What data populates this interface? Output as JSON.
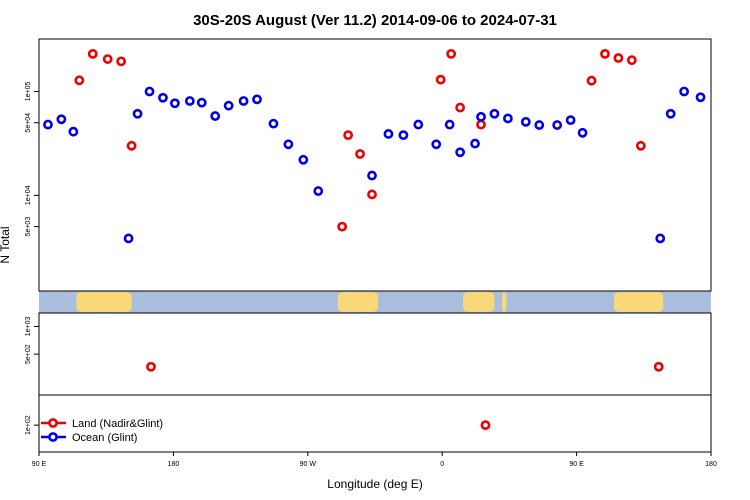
{
  "chart_data": {
    "type": "scatter",
    "title": "30S-20S August (Ver 11.2)   2014-09-06 to 2024-07-31",
    "xlabel": "Longitude (deg E)",
    "ylabel": "N Total",
    "y_scale": "log",
    "xlim": [
      90,
      540
    ],
    "x_ticks": [
      {
        "value": 90,
        "label": "90 E"
      },
      {
        "value": 180,
        "label": "180"
      },
      {
        "value": 270,
        "label": "90 W"
      },
      {
        "value": 360,
        "label": "0"
      },
      {
        "value": 450,
        "label": "90 E"
      },
      {
        "value": 540,
        "label": "180"
      }
    ],
    "panels": [
      {
        "name": "upper",
        "ylim": [
          1200,
          320000
        ],
        "y_ticks": [
          {
            "value": 5000,
            "label": "5e+03"
          },
          {
            "value": 10000,
            "label": "1e+04"
          },
          {
            "value": 50000,
            "label": "5e+04"
          },
          {
            "value": 100000,
            "label": "1e+05"
          }
        ]
      },
      {
        "name": "middle",
        "ylim": [
          180,
          1400
        ],
        "y_ticks": [
          {
            "value": 500,
            "label": "5e+02"
          },
          {
            "value": 1000,
            "label": "1e+03"
          }
        ]
      },
      {
        "name": "lower",
        "ylim": [
          85,
          120
        ],
        "y_ticks": [
          {
            "value": 100,
            "label": "1e+02"
          }
        ]
      }
    ],
    "series": [
      {
        "name": "Land (Nadir&Glint)",
        "color": "#ee0000",
        "points": [
          {
            "x": 117,
            "y": 128000,
            "panel": "upper"
          },
          {
            "x": 126,
            "y": 230000,
            "panel": "upper"
          },
          {
            "x": 136,
            "y": 205000,
            "panel": "upper"
          },
          {
            "x": 145,
            "y": 195000,
            "panel": "upper"
          },
          {
            "x": 152,
            "y": 30000,
            "panel": "upper"
          },
          {
            "x": 165,
            "y": 365,
            "panel": "middle"
          },
          {
            "x": 293,
            "y": 5000,
            "panel": "upper"
          },
          {
            "x": 297,
            "y": 38000,
            "panel": "upper"
          },
          {
            "x": 305,
            "y": 25000,
            "panel": "upper"
          },
          {
            "x": 313,
            "y": 10200,
            "panel": "upper"
          },
          {
            "x": 359,
            "y": 130000,
            "panel": "upper"
          },
          {
            "x": 366,
            "y": 230000,
            "panel": "upper"
          },
          {
            "x": 372,
            "y": 70000,
            "panel": "upper"
          },
          {
            "x": 386,
            "y": 48000,
            "panel": "upper"
          },
          {
            "x": 389,
            "y": 100,
            "panel": "lower"
          },
          {
            "x": 460,
            "y": 127000,
            "panel": "upper"
          },
          {
            "x": 469,
            "y": 230000,
            "panel": "upper"
          },
          {
            "x": 478,
            "y": 210000,
            "panel": "upper"
          },
          {
            "x": 487,
            "y": 200000,
            "panel": "upper"
          },
          {
            "x": 493,
            "y": 30000,
            "panel": "upper"
          },
          {
            "x": 505,
            "y": 365,
            "panel": "middle"
          }
        ]
      },
      {
        "name": "Ocean (Glint)",
        "color": "#0000ee",
        "points": [
          {
            "x": 96,
            "y": 48000,
            "panel": "upper"
          },
          {
            "x": 105,
            "y": 54000,
            "panel": "upper"
          },
          {
            "x": 113,
            "y": 41000,
            "panel": "upper"
          },
          {
            "x": 150,
            "y": 3850,
            "panel": "upper"
          },
          {
            "x": 156,
            "y": 61000,
            "panel": "upper"
          },
          {
            "x": 164,
            "y": 100000,
            "panel": "upper"
          },
          {
            "x": 173,
            "y": 87000,
            "panel": "upper"
          },
          {
            "x": 181,
            "y": 77000,
            "panel": "upper"
          },
          {
            "x": 191,
            "y": 81000,
            "panel": "upper"
          },
          {
            "x": 199,
            "y": 78000,
            "panel": "upper"
          },
          {
            "x": 208,
            "y": 58000,
            "panel": "upper"
          },
          {
            "x": 217,
            "y": 73000,
            "panel": "upper"
          },
          {
            "x": 227,
            "y": 81000,
            "panel": "upper"
          },
          {
            "x": 236,
            "y": 84000,
            "panel": "upper"
          },
          {
            "x": 247,
            "y": 49000,
            "panel": "upper"
          },
          {
            "x": 257,
            "y": 31000,
            "panel": "upper"
          },
          {
            "x": 267,
            "y": 22000,
            "panel": "upper"
          },
          {
            "x": 277,
            "y": 11000,
            "panel": "upper"
          },
          {
            "x": 313,
            "y": 15500,
            "panel": "upper"
          },
          {
            "x": 324,
            "y": 39000,
            "panel": "upper"
          },
          {
            "x": 334,
            "y": 38000,
            "panel": "upper"
          },
          {
            "x": 344,
            "y": 48000,
            "panel": "upper"
          },
          {
            "x": 356,
            "y": 31000,
            "panel": "upper"
          },
          {
            "x": 365,
            "y": 48000,
            "panel": "upper"
          },
          {
            "x": 372,
            "y": 26000,
            "panel": "upper"
          },
          {
            "x": 382,
            "y": 31500,
            "panel": "upper"
          },
          {
            "x": 386,
            "y": 57000,
            "panel": "upper"
          },
          {
            "x": 395,
            "y": 61000,
            "panel": "upper"
          },
          {
            "x": 404,
            "y": 55000,
            "panel": "upper"
          },
          {
            "x": 416,
            "y": 51000,
            "panel": "upper"
          },
          {
            "x": 425,
            "y": 47500,
            "panel": "upper"
          },
          {
            "x": 437,
            "y": 47500,
            "panel": "upper"
          },
          {
            "x": 446,
            "y": 53000,
            "panel": "upper"
          },
          {
            "x": 454,
            "y": 40000,
            "panel": "upper"
          },
          {
            "x": 506,
            "y": 3850,
            "panel": "upper"
          },
          {
            "x": 513,
            "y": 61000,
            "panel": "upper"
          },
          {
            "x": 522,
            "y": 100000,
            "panel": "upper"
          },
          {
            "x": 533,
            "y": 88000,
            "panel": "upper"
          }
        ]
      }
    ],
    "map_strip": {
      "ocean_color": "#a8bedc",
      "land_color": "#f8d878",
      "land_ranges": [
        [
          115,
          152
        ],
        [
          290,
          317
        ],
        [
          374,
          395
        ],
        [
          400,
          403
        ],
        [
          475,
          508
        ]
      ]
    },
    "legend": "bottom-left",
    "grid": false
  }
}
